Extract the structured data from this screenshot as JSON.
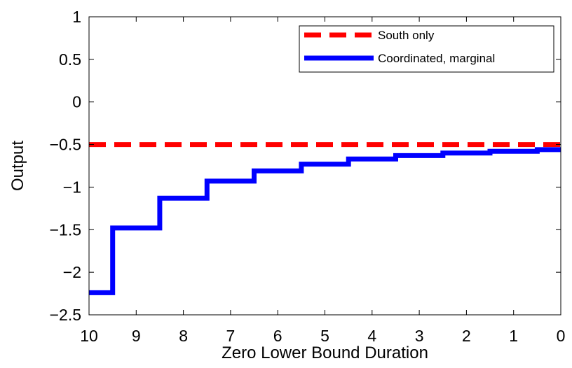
{
  "chart_data": {
    "type": "line",
    "title": "",
    "xlabel": "Zero Lower Bound Duration",
    "ylabel": "Output",
    "xlim": [
      10,
      0
    ],
    "ylim": [
      -2.5,
      1
    ],
    "x_reversed": true,
    "xticks": [
      10,
      9,
      8,
      7,
      6,
      5,
      4,
      3,
      2,
      1,
      0
    ],
    "yticks": [
      1,
      0.5,
      0,
      -0.5,
      -1,
      -1.5,
      -2,
      -2.5
    ],
    "xtick_labels": [
      "10",
      "9",
      "8",
      "7",
      "6",
      "5",
      "4",
      "3",
      "2",
      "1",
      "0"
    ],
    "ytick_labels": [
      "1",
      "0.5",
      "0",
      "−0.5",
      "−1",
      "−1.5",
      "−2",
      "−2.5"
    ],
    "grid": false,
    "legend": "top-right",
    "series": [
      {
        "name": "South only",
        "style": "dashed",
        "color": "#ff0000",
        "x": [
          10,
          0
        ],
        "y": [
          -0.5,
          -0.5
        ]
      },
      {
        "name": "Coordinated, marginal",
        "style": "solid-step",
        "color": "#0000ff",
        "x": [
          10,
          9,
          8,
          7,
          6,
          5,
          4,
          3,
          2,
          1,
          0
        ],
        "y": [
          -2.24,
          -1.48,
          -1.13,
          -0.93,
          -0.81,
          -0.73,
          -0.67,
          -0.63,
          -0.6,
          -0.58,
          -0.56
        ]
      }
    ]
  }
}
